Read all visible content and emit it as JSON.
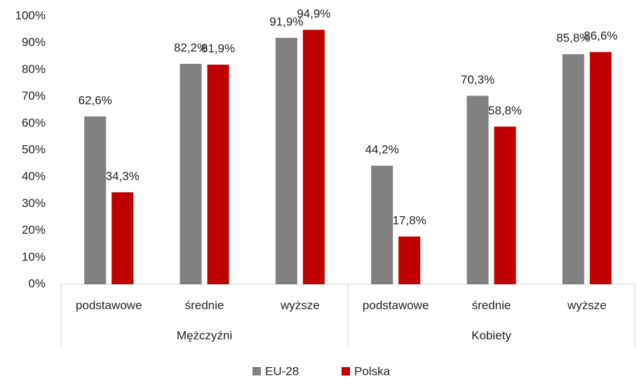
{
  "chart_data": {
    "type": "bar",
    "groups": [
      {
        "name": "Mężczyźni",
        "categories": [
          "podstawowe",
          "średnie",
          "wyższe"
        ]
      },
      {
        "name": "Kobiety",
        "categories": [
          "podstawowe",
          "średnie",
          "wyższe"
        ]
      }
    ],
    "series": [
      {
        "name": "EU-28",
        "color": "#808080",
        "values": [
          62.6,
          82.2,
          91.9,
          44.2,
          70.3,
          85.8
        ],
        "value_labels": [
          "62,6%",
          "82,2%",
          "91,9%",
          "44,2%",
          "70,3%",
          "85,8%"
        ]
      },
      {
        "name": "Polska",
        "color": "#c00000",
        "values": [
          34.3,
          81.9,
          94.9,
          17.8,
          58.8,
          86.6
        ],
        "value_labels": [
          "34,3%",
          "81,9%",
          "94,9%",
          "17,8%",
          "58,8%",
          "86,6%"
        ]
      }
    ],
    "ylim": [
      0,
      100
    ],
    "yticks": [
      {
        "value": 0,
        "label": "0%"
      },
      {
        "value": 10,
        "label": "10%"
      },
      {
        "value": 20,
        "label": "20%"
      },
      {
        "value": 30,
        "label": "30%"
      },
      {
        "value": 40,
        "label": "40%"
      },
      {
        "value": 50,
        "label": "50%"
      },
      {
        "value": 60,
        "label": "60%"
      },
      {
        "value": 70,
        "label": "70%"
      },
      {
        "value": 80,
        "label": "80%"
      },
      {
        "value": 90,
        "label": "90%"
      },
      {
        "value": 100,
        "label": "100%"
      }
    ],
    "grid": false,
    "legend": "bottom"
  }
}
